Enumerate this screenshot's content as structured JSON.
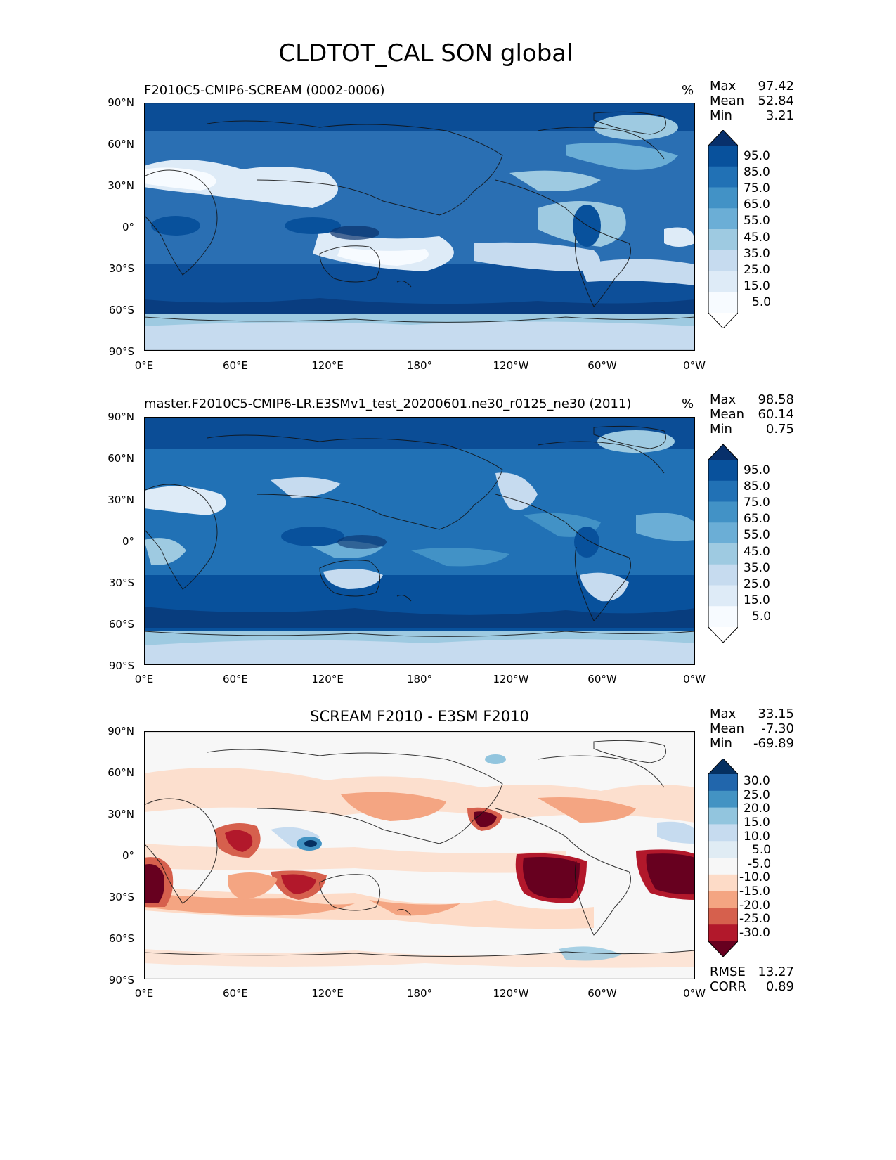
{
  "figure_title": "CLDTOT_CAL SON global",
  "x_ticks": [
    "0°E",
    "60°E",
    "120°E",
    "180°",
    "120°W",
    "60°W",
    "0°W"
  ],
  "y_ticks": [
    "90°N",
    "60°N",
    "30°N",
    "0°",
    "30°S",
    "60°S",
    "90°S"
  ],
  "panels": [
    {
      "title": "F2010C5-CMIP6-SCREAM (0002-0006)",
      "units": "%",
      "stats": {
        "max_label": "Max",
        "max": "97.42",
        "mean_label": "Mean",
        "mean": "52.84",
        "min_label": "Min",
        "min": "3.21"
      },
      "colorbar": {
        "ticks": [
          "95.0",
          "85.0",
          "75.0",
          "65.0",
          "55.0",
          "45.0",
          "35.0",
          "25.0",
          "15.0",
          "5.0"
        ],
        "colors": [
          "#08306b",
          "#08519c",
          "#2171b5",
          "#4292c6",
          "#6baed6",
          "#9ecae1",
          "#c6dbef",
          "#deebf7",
          "#f7fbff",
          "#ffffff"
        ]
      }
    },
    {
      "title": "master.F2010C5-CMIP6-LR.E3SMv1_test_20200601.ne30_r0125_ne30 (2011)",
      "units": "%",
      "stats": {
        "max_label": "Max",
        "max": "98.58",
        "mean_label": "Mean",
        "mean": "60.14",
        "min_label": "Min",
        "min": "0.75"
      },
      "colorbar": {
        "ticks": [
          "95.0",
          "85.0",
          "75.0",
          "65.0",
          "55.0",
          "45.0",
          "35.0",
          "25.0",
          "15.0",
          "5.0"
        ],
        "colors": [
          "#08306b",
          "#08519c",
          "#2171b5",
          "#4292c6",
          "#6baed6",
          "#9ecae1",
          "#c6dbef",
          "#deebf7",
          "#f7fbff",
          "#ffffff"
        ]
      }
    },
    {
      "title": "SCREAM F2010 - E3SM F2010",
      "units": "",
      "stats": {
        "max_label": "Max",
        "max": "33.15",
        "mean_label": "Mean",
        "mean": "-7.30",
        "min_label": "Min",
        "min": "-69.89"
      },
      "metrics": {
        "rmse_label": "RMSE",
        "rmse": "13.27",
        "corr_label": "CORR",
        "corr": "0.89"
      },
      "colorbar": {
        "ticks": [
          "30.0",
          "25.0",
          "20.0",
          "15.0",
          "10.0",
          "5.0",
          "-5.0",
          "-10.0",
          "-15.0",
          "-20.0",
          "-25.0",
          "-30.0"
        ],
        "colors": [
          "#053061",
          "#2166ac",
          "#4393c3",
          "#92c5de",
          "#c6dbef",
          "#e0ecf4",
          "#f7f7f7",
          "#fddbc7",
          "#f4a582",
          "#d6604d",
          "#b2182b",
          "#67001f"
        ]
      }
    }
  ]
}
